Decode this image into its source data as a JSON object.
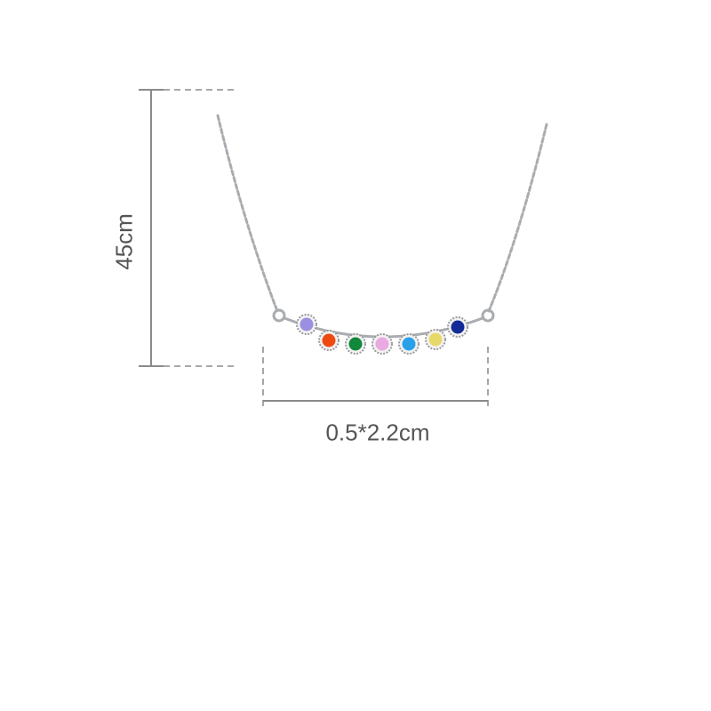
{
  "dimensions": {
    "length_label": "45cm",
    "pendant_size_label": "0.5*2.2cm"
  },
  "product": {
    "gem_colors": [
      "#9a8fe0",
      "#ee4a10",
      "#11883a",
      "#e9a9e2",
      "#2aa0ea",
      "#e8d86a",
      "#142a96"
    ],
    "metal_color": "#a9acb0",
    "annotation_color": "#8a8a8a"
  }
}
